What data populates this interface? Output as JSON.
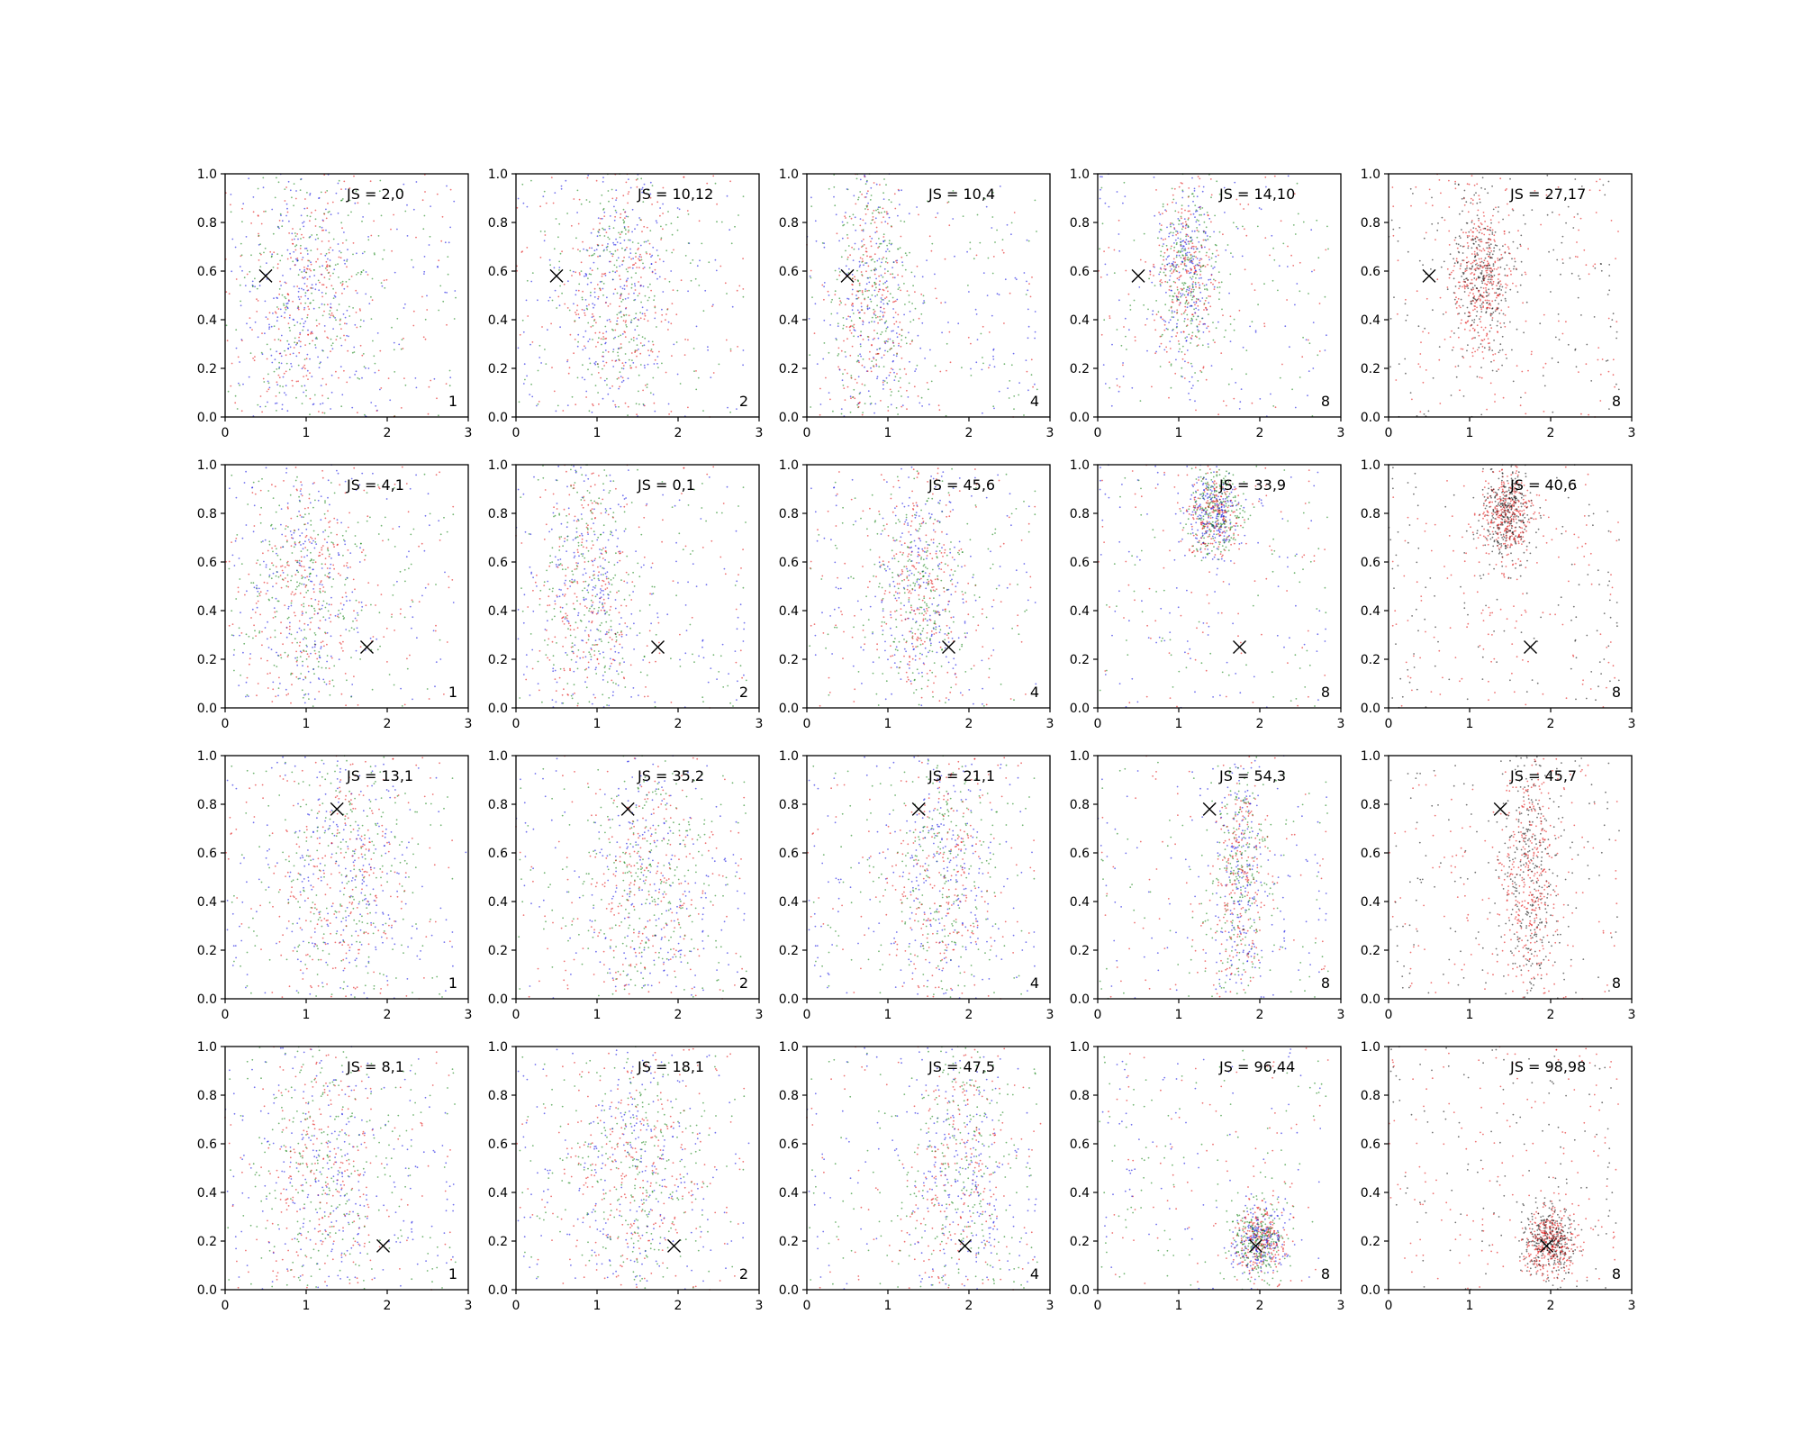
{
  "chart_data": {
    "type": "scatter",
    "layout": "grid of 4 rows x 5 columns",
    "xlim": [
      0,
      3
    ],
    "ylim": [
      0,
      1
    ],
    "xticks": [
      "0",
      "1",
      "2",
      "3"
    ],
    "yticks": [
      "0.0",
      "0.2",
      "0.4",
      "0.6",
      "0.8",
      "1.0"
    ],
    "colors": {
      "red": "#e00000",
      "green": "#007a00",
      "blue": "#0000e0",
      "black": "#000000"
    },
    "grid": false,
    "legend": "none",
    "rows": [
      {
        "marker": {
          "x": 0.5,
          "y": 0.58
        },
        "panels": [
          {
            "js_label": "JS = 2,0",
            "count_label": "1",
            "palette": [
              "red",
              "green",
              "blue"
            ],
            "cluster": {
              "x": 1.0,
              "y": 0.5,
              "spread_x": 0.7,
              "spread_y": 0.5
            }
          },
          {
            "js_label": "JS = 10,12",
            "count_label": "2",
            "palette": [
              "red",
              "green",
              "blue"
            ],
            "cluster": {
              "x": 1.3,
              "y": 0.5,
              "spread_x": 0.6,
              "spread_y": 0.5
            }
          },
          {
            "js_label": "JS = 10,4",
            "count_label": "4",
            "palette": [
              "red",
              "green",
              "blue"
            ],
            "cluster": {
              "x": 0.8,
              "y": 0.5,
              "spread_x": 0.45,
              "spread_y": 0.5
            }
          },
          {
            "js_label": "JS = 14,10",
            "count_label": "8",
            "palette": [
              "red",
              "green",
              "blue"
            ],
            "cluster": {
              "x": 1.1,
              "y": 0.6,
              "spread_x": 0.35,
              "spread_y": 0.3
            }
          },
          {
            "js_label": "JS = 27,17",
            "count_label": "8",
            "palette": [
              "red",
              "black"
            ],
            "cluster": {
              "x": 1.15,
              "y": 0.6,
              "spread_x": 0.35,
              "spread_y": 0.25
            }
          }
        ]
      },
      {
        "marker": {
          "x": 1.75,
          "y": 0.25
        },
        "panels": [
          {
            "js_label": "JS = 4,1",
            "count_label": "1",
            "palette": [
              "red",
              "green",
              "blue"
            ],
            "cluster": {
              "x": 1.0,
              "y": 0.5,
              "spread_x": 0.65,
              "spread_y": 0.5
            }
          },
          {
            "js_label": "JS = 0,1",
            "count_label": "2",
            "palette": [
              "red",
              "green",
              "blue"
            ],
            "cluster": {
              "x": 0.9,
              "y": 0.5,
              "spread_x": 0.55,
              "spread_y": 0.5
            }
          },
          {
            "js_label": "JS = 45,6",
            "count_label": "4",
            "palette": [
              "red",
              "green",
              "blue"
            ],
            "cluster": {
              "x": 1.4,
              "y": 0.5,
              "spread_x": 0.5,
              "spread_y": 0.4
            }
          },
          {
            "js_label": "JS = 33,9",
            "count_label": "8",
            "palette": [
              "red",
              "green",
              "blue"
            ],
            "cluster": {
              "x": 1.45,
              "y": 0.8,
              "spread_x": 0.3,
              "spread_y": 0.15
            }
          },
          {
            "js_label": "JS = 40,6",
            "count_label": "8",
            "palette": [
              "red",
              "black"
            ],
            "cluster": {
              "x": 1.45,
              "y": 0.8,
              "spread_x": 0.3,
              "spread_y": 0.15
            }
          }
        ]
      },
      {
        "marker": {
          "x": 1.38,
          "y": 0.78
        },
        "panels": [
          {
            "js_label": "JS = 13,1",
            "count_label": "1",
            "palette": [
              "red",
              "green",
              "blue"
            ],
            "cluster": {
              "x": 1.5,
              "y": 0.5,
              "spread_x": 0.75,
              "spread_y": 0.5
            }
          },
          {
            "js_label": "JS = 35,2",
            "count_label": "2",
            "palette": [
              "red",
              "green",
              "blue"
            ],
            "cluster": {
              "x": 1.6,
              "y": 0.5,
              "spread_x": 0.7,
              "spread_y": 0.5
            }
          },
          {
            "js_label": "JS = 21,1",
            "count_label": "4",
            "palette": [
              "red",
              "green",
              "blue"
            ],
            "cluster": {
              "x": 1.7,
              "y": 0.5,
              "spread_x": 0.55,
              "spread_y": 0.5
            }
          },
          {
            "js_label": "JS = 54,3",
            "count_label": "8",
            "palette": [
              "red",
              "green",
              "blue"
            ],
            "cluster": {
              "x": 1.75,
              "y": 0.5,
              "spread_x": 0.3,
              "spread_y": 0.45
            }
          },
          {
            "js_label": "JS = 45,7",
            "count_label": "8",
            "palette": [
              "red",
              "black"
            ],
            "cluster": {
              "x": 1.75,
              "y": 0.5,
              "spread_x": 0.3,
              "spread_y": 0.45
            }
          }
        ]
      },
      {
        "marker": {
          "x": 1.95,
          "y": 0.18
        },
        "panels": [
          {
            "js_label": "JS = 8,1",
            "count_label": "1",
            "palette": [
              "red",
              "green",
              "blue"
            ],
            "cluster": {
              "x": 1.2,
              "y": 0.5,
              "spread_x": 0.75,
              "spread_y": 0.5
            }
          },
          {
            "js_label": "JS = 18,1",
            "count_label": "2",
            "palette": [
              "red",
              "green",
              "blue"
            ],
            "cluster": {
              "x": 1.5,
              "y": 0.5,
              "spread_x": 0.7,
              "spread_y": 0.5
            }
          },
          {
            "js_label": "JS = 47,5",
            "count_label": "4",
            "palette": [
              "red",
              "green",
              "blue"
            ],
            "cluster": {
              "x": 1.9,
              "y": 0.5,
              "spread_x": 0.6,
              "spread_y": 0.5
            }
          },
          {
            "js_label": "JS = 96,44",
            "count_label": "8",
            "palette": [
              "red",
              "green",
              "blue"
            ],
            "cluster": {
              "x": 2.0,
              "y": 0.2,
              "spread_x": 0.3,
              "spread_y": 0.12
            }
          },
          {
            "js_label": "JS = 98,98",
            "count_label": "8",
            "palette": [
              "red",
              "black"
            ],
            "cluster": {
              "x": 2.0,
              "y": 0.2,
              "spread_x": 0.3,
              "spread_y": 0.12
            }
          }
        ]
      }
    ]
  }
}
